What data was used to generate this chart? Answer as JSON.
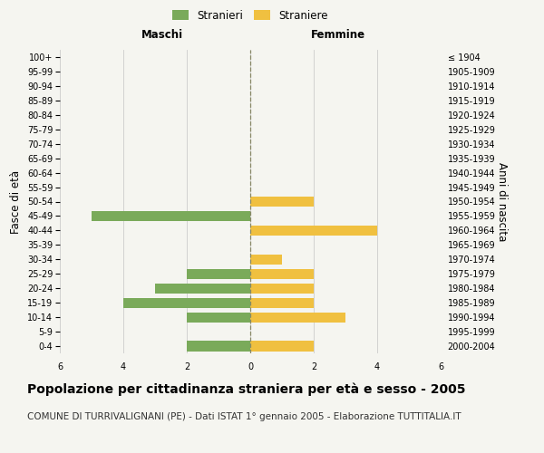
{
  "age_groups_bottom_to_top": [
    "0-4",
    "5-9",
    "10-14",
    "15-19",
    "20-24",
    "25-29",
    "30-34",
    "35-39",
    "40-44",
    "45-49",
    "50-54",
    "55-59",
    "60-64",
    "65-69",
    "70-74",
    "75-79",
    "80-84",
    "85-89",
    "90-94",
    "95-99",
    "100+"
  ],
  "birth_years_bottom_to_top": [
    "2000-2004",
    "1995-1999",
    "1990-1994",
    "1985-1989",
    "1980-1984",
    "1975-1979",
    "1970-1974",
    "1965-1969",
    "1960-1964",
    "1955-1959",
    "1950-1954",
    "1945-1949",
    "1940-1944",
    "1935-1939",
    "1930-1934",
    "1925-1929",
    "1920-1924",
    "1915-1919",
    "1910-1914",
    "1905-1909",
    "≤ 1904"
  ],
  "maschi_bottom_to_top": [
    2,
    0,
    2,
    4,
    3,
    2,
    0,
    0,
    0,
    5,
    0,
    0,
    0,
    0,
    0,
    0,
    0,
    0,
    0,
    0,
    0
  ],
  "femmine_bottom_to_top": [
    2,
    0,
    3,
    2,
    2,
    2,
    1,
    0,
    4,
    0,
    2,
    0,
    0,
    0,
    0,
    0,
    0,
    0,
    0,
    0,
    0
  ],
  "color_maschi": "#7aaa5a",
  "color_femmine": "#f0c040",
  "xlim": 6,
  "title": "Popolazione per cittadinanza straniera per età e sesso - 2005",
  "subtitle": "COMUNE DI TURRIVALIGNANI (PE) - Dati ISTAT 1° gennaio 2005 - Elaborazione TUTTITALIA.IT",
  "xlabel_left": "Maschi",
  "xlabel_right": "Femmine",
  "ylabel_left": "Fasce di età",
  "ylabel_right": "Anni di nascita",
  "legend_maschi": "Stranieri",
  "legend_femmine": "Straniere",
  "bg_color": "#f5f5f0",
  "grid_color": "#cccccc",
  "title_fontsize": 10,
  "subtitle_fontsize": 7.5,
  "tick_fontsize": 7,
  "label_fontsize": 8.5,
  "bar_height": 0.7
}
